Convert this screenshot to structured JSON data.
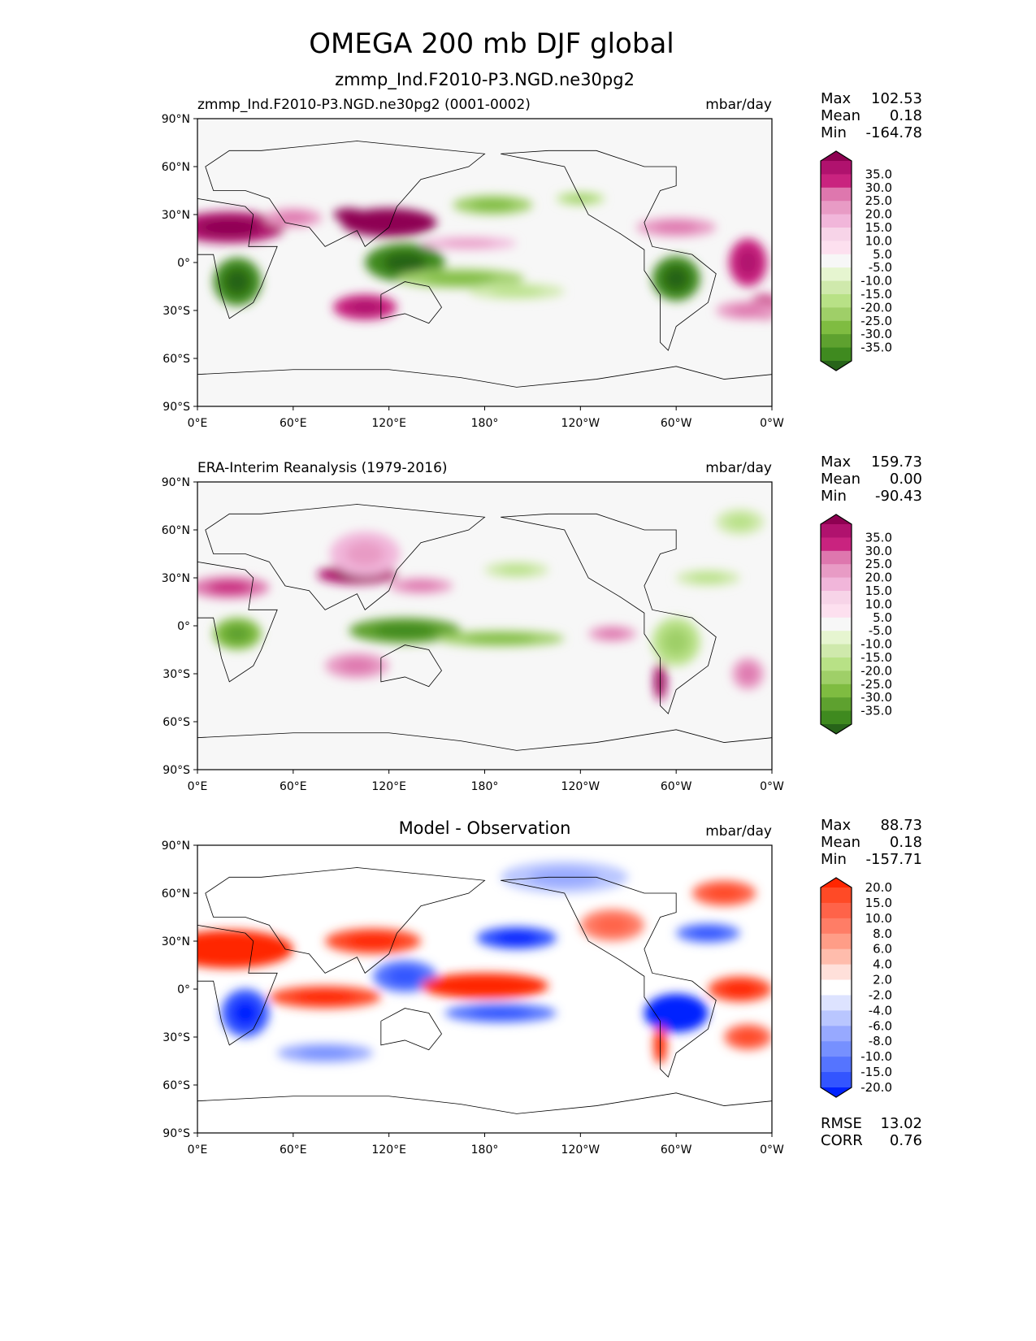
{
  "title": "OMEGA 200 mb DJF global",
  "chart_data": [
    {
      "type": "heatmap",
      "kind": "contour-map",
      "left_title": "zmmp_Ind.F2010-P3.NGD.ne30pg2 (0001-0002)",
      "center_title": "zmmp_Ind.F2010-P3.NGD.ne30pg2",
      "units": "mbar/day",
      "stats": {
        "max_label": "Max",
        "max": "102.53",
        "mean_label": "Mean",
        "mean": "0.18",
        "min_label": "Min",
        "min": "-164.78"
      },
      "xticks": [
        "0°E",
        "60°E",
        "120°E",
        "180°",
        "120°W",
        "60°W",
        "0°W"
      ],
      "yticks": [
        "90°N",
        "60°N",
        "30°N",
        "0°",
        "30°S",
        "60°S",
        "90°S"
      ],
      "xlim": [
        0,
        360
      ],
      "ylim": [
        -90,
        90
      ],
      "levels": [
        "35.0",
        "30.0",
        "25.0",
        "20.0",
        "15.0",
        "10.0",
        "5.0",
        "-5.0",
        "-10.0",
        "-15.0",
        "-20.0",
        "-25.0",
        "-30.0",
        "-35.0"
      ],
      "colors": [
        "#8e0152",
        "#b0126e",
        "#c9237f",
        "#de77ae",
        "#e89bc5",
        "#f1b6da",
        "#f7d4e8",
        "#fde0ef",
        "#f7f7f7",
        "#e6f5d0",
        "#cfe9ac",
        "#b8e186",
        "#9fcf68",
        "#7fbc41",
        "#5ea12f",
        "#3f8a1f",
        "#276419"
      ]
    },
    {
      "type": "heatmap",
      "kind": "contour-map",
      "left_title": "ERA-Interim Reanalysis (1979-2016)",
      "center_title": "",
      "units": "mbar/day",
      "stats": {
        "max_label": "Max",
        "max": "159.73",
        "mean_label": "Mean",
        "mean": "0.00",
        "min_label": "Min",
        "min": "-90.43"
      },
      "xticks": [
        "0°E",
        "60°E",
        "120°E",
        "180°",
        "120°W",
        "60°W",
        "0°W"
      ],
      "yticks": [
        "90°N",
        "60°N",
        "30°N",
        "0°",
        "30°S",
        "60°S",
        "90°S"
      ],
      "xlim": [
        0,
        360
      ],
      "ylim": [
        -90,
        90
      ],
      "levels": [
        "35.0",
        "30.0",
        "25.0",
        "20.0",
        "15.0",
        "10.0",
        "5.0",
        "-5.0",
        "-10.0",
        "-15.0",
        "-20.0",
        "-25.0",
        "-30.0",
        "-35.0"
      ],
      "colors": [
        "#8e0152",
        "#b0126e",
        "#c9237f",
        "#de77ae",
        "#e89bc5",
        "#f1b6da",
        "#f7d4e8",
        "#fde0ef",
        "#f7f7f7",
        "#e6f5d0",
        "#cfe9ac",
        "#b8e186",
        "#9fcf68",
        "#7fbc41",
        "#5ea12f",
        "#3f8a1f",
        "#276419"
      ]
    },
    {
      "type": "heatmap",
      "kind": "contour-map",
      "left_title": "",
      "center_title": "Model - Observation",
      "units": "mbar/day",
      "stats": {
        "max_label": "Max",
        "max": "88.73",
        "mean_label": "Mean",
        "mean": "0.18",
        "min_label": "Min",
        "min": "-157.71"
      },
      "extra": {
        "rmse_label": "RMSE",
        "rmse": "13.02",
        "corr_label": "CORR",
        "corr": "0.76"
      },
      "xticks": [
        "0°E",
        "60°E",
        "120°E",
        "180°",
        "120°W",
        "60°W",
        "0°W"
      ],
      "yticks": [
        "90°N",
        "60°N",
        "30°N",
        "0°",
        "30°S",
        "60°S",
        "90°S"
      ],
      "xlim": [
        0,
        360
      ],
      "ylim": [
        -90,
        90
      ],
      "levels": [
        "20.0",
        "15.0",
        "10.0",
        "8.0",
        "6.0",
        "4.0",
        "2.0",
        "-2.0",
        "-4.0",
        "-6.0",
        "-8.0",
        "-10.0",
        "-15.0",
        "-20.0"
      ],
      "colors": [
        "#ff2600",
        "#ff4a26",
        "#ff6349",
        "#ff7d66",
        "#ff9d87",
        "#ffbcac",
        "#ffe0da",
        "#ffffff",
        "#dde3ff",
        "#b9c6ff",
        "#97a9ff",
        "#7690ff",
        "#5574ff",
        "#3355ff",
        "#0022ff"
      ]
    }
  ]
}
